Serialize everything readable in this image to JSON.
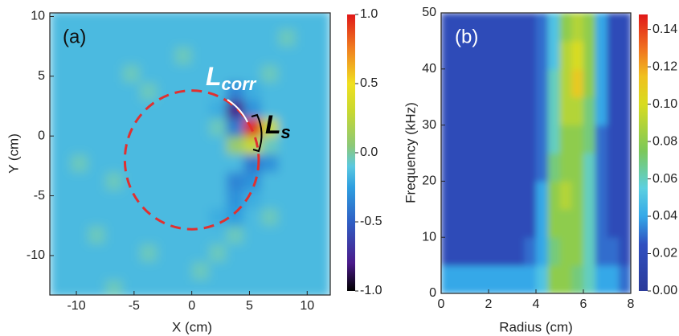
{
  "chart_data": [
    {
      "type": "heatmap",
      "panel_label": "(a)",
      "xlabel": "X (cm)",
      "ylabel": "Y (cm)",
      "xlim": [
        -12.3,
        12
      ],
      "ylim": [
        -13.3,
        10.3
      ],
      "xticks": [
        -10,
        -5,
        0,
        5,
        10
      ],
      "yticks": [
        -10,
        -5,
        0,
        5,
        10
      ],
      "clim": [
        -1,
        1
      ],
      "cticks": [
        {
          "value": -1,
          "label": "-1.0"
        },
        -0.5,
        {
          "value": 0,
          "label": "0.0"
        },
        0.5,
        {
          "value": 1,
          "label": "1.0"
        }
      ],
      "colormap": [
        [
          -1,
          "#000000"
        ],
        [
          -0.8,
          "#4a1a8a"
        ],
        [
          -0.5,
          "#2f5fc4"
        ],
        [
          -0.25,
          "#2e9fe0"
        ],
        [
          -0.1,
          "#5ac8e0"
        ],
        [
          0.05,
          "#8cc878"
        ],
        [
          0.3,
          "#c8d830"
        ],
        [
          0.5,
          "#f0e020"
        ],
        [
          0.75,
          "#f08020"
        ],
        [
          1,
          "#e01818"
        ]
      ],
      "x": [
        -11.25,
        -9.75,
        -8.25,
        -6.75,
        -5.25,
        -3.75,
        -2.25,
        -0.75,
        0.75,
        2.25,
        3.75,
        5.25,
        6.75,
        8.25,
        9.75,
        11.25
      ],
      "y": [
        -12.75,
        -11.25,
        -9.75,
        -8.25,
        -6.75,
        -5.25,
        -3.75,
        -2.25,
        -0.75,
        0.75,
        2.25,
        3.75,
        5.25,
        6.75,
        8.25,
        9.75
      ],
      "z": [
        [
          -0.15,
          -0.15,
          -0.15,
          -0.05,
          -0.15,
          -0.15,
          -0.15,
          -0.15,
          -0.15,
          -0.15,
          -0.15,
          -0.15,
          -0.15,
          -0.15,
          -0.15,
          -0.15
        ],
        [
          -0.15,
          -0.15,
          -0.15,
          -0.15,
          -0.15,
          -0.15,
          -0.15,
          -0.15,
          -0.05,
          -0.15,
          -0.15,
          -0.15,
          -0.15,
          -0.15,
          -0.15,
          -0.15
        ],
        [
          -0.15,
          -0.15,
          -0.15,
          -0.15,
          -0.15,
          -0.05,
          -0.15,
          -0.15,
          -0.15,
          -0.05,
          -0.15,
          -0.15,
          -0.15,
          -0.15,
          -0.15,
          -0.15
        ],
        [
          -0.15,
          -0.15,
          -0.05,
          -0.15,
          -0.15,
          -0.15,
          -0.15,
          -0.15,
          -0.15,
          -0.15,
          -0.05,
          -0.15,
          -0.15,
          -0.15,
          -0.15,
          -0.15
        ],
        [
          -0.15,
          -0.15,
          -0.15,
          -0.15,
          -0.15,
          -0.15,
          -0.15,
          -0.15,
          -0.15,
          -0.2,
          -0.25,
          -0.15,
          -0.05,
          -0.15,
          -0.15,
          -0.15
        ],
        [
          -0.15,
          -0.15,
          -0.15,
          -0.15,
          -0.15,
          -0.15,
          -0.15,
          -0.15,
          -0.15,
          -0.15,
          -0.3,
          -0.2,
          -0.15,
          -0.15,
          -0.15,
          -0.15
        ],
        [
          -0.15,
          -0.15,
          -0.15,
          -0.05,
          -0.15,
          -0.15,
          -0.15,
          -0.15,
          -0.15,
          -0.15,
          -0.35,
          -0.3,
          -0.15,
          -0.15,
          -0.15,
          -0.15
        ],
        [
          -0.15,
          -0.05,
          -0.15,
          -0.15,
          -0.15,
          -0.15,
          -0.15,
          -0.15,
          -0.15,
          -0.15,
          -0.15,
          -0.4,
          -0.3,
          -0.15,
          -0.15,
          -0.15
        ],
        [
          -0.15,
          -0.15,
          -0.15,
          -0.15,
          -0.15,
          -0.15,
          -0.15,
          -0.15,
          -0.15,
          -0.15,
          0.1,
          0.3,
          -0.05,
          -0.15,
          -0.15,
          -0.15
        ],
        [
          -0.15,
          -0.15,
          -0.15,
          -0.15,
          -0.15,
          -0.15,
          -0.15,
          -0.15,
          -0.15,
          -0.05,
          -0.4,
          1.0,
          0.3,
          -0.15,
          -0.15,
          -0.15
        ],
        [
          -0.15,
          -0.15,
          -0.15,
          -0.15,
          -0.15,
          -0.15,
          -0.15,
          -0.15,
          -0.15,
          -0.2,
          -0.8,
          -0.3,
          -0.15,
          -0.15,
          -0.15,
          -0.15
        ],
        [
          -0.15,
          -0.15,
          -0.15,
          -0.15,
          -0.15,
          -0.05,
          -0.15,
          -0.15,
          -0.15,
          -0.15,
          -0.35,
          -0.2,
          -0.15,
          -0.15,
          -0.15,
          -0.15
        ],
        [
          -0.15,
          -0.15,
          -0.15,
          -0.15,
          -0.05,
          -0.15,
          -0.15,
          -0.15,
          -0.15,
          -0.15,
          -0.15,
          -0.15,
          -0.05,
          -0.15,
          -0.15,
          -0.15
        ],
        [
          -0.15,
          -0.15,
          -0.15,
          -0.15,
          -0.15,
          -0.15,
          -0.15,
          -0.05,
          -0.15,
          -0.15,
          -0.15,
          -0.15,
          -0.15,
          -0.15,
          -0.15,
          -0.15
        ],
        [
          -0.15,
          -0.15,
          -0.15,
          -0.15,
          -0.15,
          -0.15,
          -0.15,
          -0.15,
          -0.15,
          -0.15,
          -0.15,
          -0.15,
          -0.15,
          -0.05,
          -0.15,
          -0.15
        ],
        [
          -0.15,
          -0.15,
          -0.15,
          -0.15,
          -0.15,
          -0.15,
          -0.15,
          -0.15,
          -0.15,
          -0.15,
          -0.15,
          -0.15,
          -0.15,
          -0.15,
          -0.15,
          -0.15
        ]
      ],
      "circle": {
        "cx": 0,
        "cy": -2,
        "r": 5.8,
        "color": "#e03030"
      },
      "annotations": [
        {
          "text": "L",
          "sub": "corr",
          "color": "#ffffff"
        },
        {
          "text": "L",
          "sub": "s",
          "color": "#000000"
        }
      ]
    },
    {
      "type": "heatmap",
      "panel_label": "(b)",
      "xlabel": "Radius (cm)",
      "ylabel": "Frequency (kHz)",
      "xlim": [
        0,
        8
      ],
      "ylim": [
        0,
        50
      ],
      "xticks": [
        0,
        2,
        4,
        6,
        8
      ],
      "yticks": [
        0,
        10,
        20,
        30,
        40,
        50
      ],
      "clim": [
        0,
        0.148
      ],
      "cticks": [
        {
          "value": 0,
          "label": "0.00"
        },
        0.02,
        0.04,
        0.06,
        0.08,
        {
          "value": 0.1,
          "label": "0.10"
        },
        0.12,
        0.14
      ],
      "colormap": [
        [
          0,
          "#2a3a9a"
        ],
        [
          0.025,
          "#3050c0"
        ],
        [
          0.04,
          "#34a8e8"
        ],
        [
          0.055,
          "#5cd0e0"
        ],
        [
          0.075,
          "#7cc85a"
        ],
        [
          0.1,
          "#d8dc20"
        ],
        [
          0.115,
          "#f0c020"
        ],
        [
          0.13,
          "#f07020"
        ],
        [
          0.148,
          "#e01818"
        ]
      ],
      "x": [
        0.25,
        0.75,
        1.25,
        1.75,
        2.25,
        2.75,
        3.25,
        3.75,
        4.25,
        4.75,
        5.25,
        5.75,
        6.25,
        6.75,
        7.25,
        7.75
      ],
      "y": [
        2.5,
        7.5,
        12.5,
        17.5,
        22.5,
        27.5,
        32.5,
        37.5,
        42.5,
        47.5
      ],
      "z": [
        [
          0.04,
          0.04,
          0.04,
          0.04,
          0.04,
          0.04,
          0.04,
          0.04,
          0.05,
          0.08,
          0.08,
          0.07,
          0.06,
          0.04,
          0.04,
          0.03
        ],
        [
          0.02,
          0.02,
          0.02,
          0.02,
          0.02,
          0.02,
          0.02,
          0.03,
          0.04,
          0.07,
          0.08,
          0.08,
          0.06,
          0.03,
          0.03,
          0.02
        ],
        [
          0.02,
          0.02,
          0.02,
          0.02,
          0.02,
          0.02,
          0.02,
          0.02,
          0.04,
          0.08,
          0.08,
          0.08,
          0.06,
          0.03,
          0.02,
          0.02
        ],
        [
          0.02,
          0.02,
          0.02,
          0.02,
          0.02,
          0.02,
          0.02,
          0.02,
          0.04,
          0.08,
          0.09,
          0.08,
          0.06,
          0.03,
          0.02,
          0.02
        ],
        [
          0.02,
          0.02,
          0.02,
          0.02,
          0.02,
          0.02,
          0.02,
          0.02,
          0.03,
          0.07,
          0.08,
          0.08,
          0.06,
          0.03,
          0.02,
          0.02
        ],
        [
          0.02,
          0.02,
          0.02,
          0.02,
          0.02,
          0.02,
          0.02,
          0.02,
          0.03,
          0.06,
          0.08,
          0.08,
          0.07,
          0.03,
          0.02,
          0.02
        ],
        [
          0.02,
          0.02,
          0.02,
          0.02,
          0.02,
          0.02,
          0.02,
          0.02,
          0.03,
          0.06,
          0.09,
          0.09,
          0.07,
          0.04,
          0.02,
          0.02
        ],
        [
          0.02,
          0.02,
          0.02,
          0.02,
          0.02,
          0.02,
          0.02,
          0.02,
          0.03,
          0.06,
          0.09,
          0.11,
          0.08,
          0.04,
          0.02,
          0.02
        ],
        [
          0.02,
          0.02,
          0.02,
          0.02,
          0.02,
          0.02,
          0.02,
          0.02,
          0.03,
          0.05,
          0.09,
          0.1,
          0.08,
          0.04,
          0.02,
          0.02
        ],
        [
          0.02,
          0.02,
          0.02,
          0.02,
          0.02,
          0.02,
          0.02,
          0.02,
          0.03,
          0.05,
          0.08,
          0.09,
          0.08,
          0.04,
          0.02,
          0.02
        ]
      ]
    }
  ]
}
